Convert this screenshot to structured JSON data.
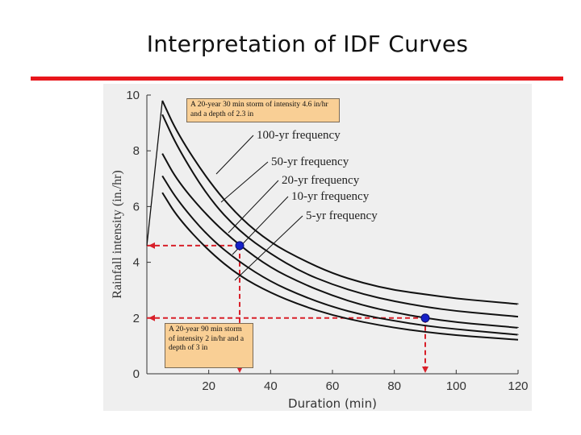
{
  "slide": {
    "title": "Interpretation of IDF Curves",
    "accent_color": "#e8161b"
  },
  "chart_data": {
    "type": "line",
    "xlabel": "Duration (min)",
    "ylabel": "Rainfall intensity (in./hr)",
    "xlim": [
      0,
      120
    ],
    "ylim": [
      0,
      10
    ],
    "x_ticks": [
      20,
      40,
      60,
      80,
      100,
      120
    ],
    "y_ticks": [
      0,
      2,
      4,
      6,
      8,
      10
    ],
    "grid": false,
    "series": [
      {
        "name": "100-yr frequency",
        "x": [
          5,
          10,
          20,
          30,
          40,
          50,
          60,
          70,
          80,
          90,
          100,
          110,
          120
        ],
        "y": [
          9.8,
          8.6,
          6.9,
          5.6,
          4.7,
          4.1,
          3.6,
          3.25,
          3.0,
          2.85,
          2.7,
          2.6,
          2.5
        ]
      },
      {
        "name": "50-yr frequency",
        "x": [
          5,
          10,
          20,
          30,
          40,
          50,
          60,
          70,
          80,
          90,
          100,
          110,
          120
        ],
        "y": [
          9.3,
          8.1,
          6.3,
          5.1,
          4.3,
          3.65,
          3.2,
          2.85,
          2.6,
          2.4,
          2.25,
          2.15,
          2.05
        ]
      },
      {
        "name": "20-yr frequency",
        "x": [
          5,
          10,
          20,
          30,
          40,
          50,
          60,
          70,
          80,
          90,
          100,
          110,
          120
        ],
        "y": [
          7.9,
          6.9,
          5.6,
          4.6,
          3.8,
          3.25,
          2.8,
          2.45,
          2.2,
          2.0,
          1.85,
          1.75,
          1.65
        ]
      },
      {
        "name": "10-yr frequency",
        "x": [
          5,
          10,
          20,
          30,
          40,
          50,
          60,
          70,
          80,
          90,
          100,
          110,
          120
        ],
        "y": [
          7.1,
          6.2,
          4.9,
          4.0,
          3.3,
          2.8,
          2.4,
          2.1,
          1.9,
          1.72,
          1.6,
          1.5,
          1.4
        ]
      },
      {
        "name": "5-yr frequency",
        "x": [
          5,
          10,
          20,
          30,
          40,
          50,
          60,
          70,
          80,
          90,
          100,
          110,
          120
        ],
        "y": [
          6.5,
          5.6,
          4.4,
          3.5,
          2.9,
          2.45,
          2.1,
          1.85,
          1.65,
          1.5,
          1.38,
          1.3,
          1.22
        ]
      }
    ],
    "highlight_points": [
      {
        "x": 30,
        "y": 4.6,
        "color": "#1520c8"
      },
      {
        "x": 90,
        "y": 2.0,
        "color": "#1520c8"
      }
    ],
    "annotations": [
      {
        "id": "note-top",
        "text": "A 20-year 30 min storm of intensity 4.6 in/hr and a depth of 2.3 in"
      },
      {
        "id": "note-bottom",
        "text": "A 20-year 90 min storm of intensity 2 in/hr and a depth of 3 in"
      }
    ],
    "dashed_guides_color": "#d8202a"
  }
}
